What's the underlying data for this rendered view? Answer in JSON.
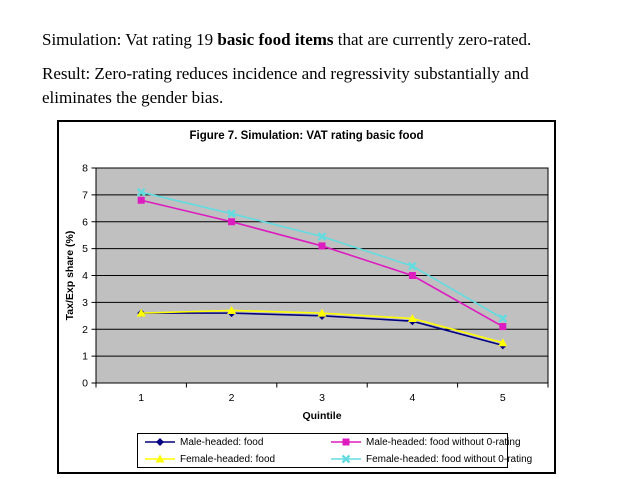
{
  "slide": {
    "line1": {
      "prefix": "Simulation: Vat rating 19 ",
      "bold": "basic food items",
      "suffix": " that are currently zero-rated."
    },
    "paragraph2": "Result: Zero-rating reduces incidence and regressivity substantially and eliminates the gender bias."
  },
  "chart_data": {
    "type": "line",
    "title": "Figure 7. Simulation: VAT rating basic food",
    "xlabel": "Quintile",
    "ylabel": "Tax/Exp share (%)",
    "categories": [
      "1",
      "2",
      "3",
      "4",
      "5"
    ],
    "ylim": [
      0,
      8
    ],
    "ytick_step": 1,
    "grid": true,
    "plot_bg": "#c0c0c0",
    "axis_color": "#000000",
    "legend_position": "bottom",
    "series": [
      {
        "name": "Male-headed: food",
        "color": "#000080",
        "marker": "diamond",
        "values": [
          2.6,
          2.6,
          2.5,
          2.3,
          1.4
        ]
      },
      {
        "name": "Male-headed: food without 0-rating",
        "color": "#dd1cc0",
        "marker": "square",
        "values": [
          6.8,
          6.0,
          5.1,
          4.0,
          2.1
        ]
      },
      {
        "name": "Female-headed: food",
        "color": "#ffff00",
        "marker": "triangle",
        "values": [
          2.6,
          2.7,
          2.6,
          2.4,
          1.5
        ]
      },
      {
        "name": "Female-headed: food without 0-rating",
        "color": "#63dce0",
        "marker": "x",
        "values": [
          7.1,
          6.3,
          5.45,
          4.35,
          2.4
        ]
      }
    ]
  }
}
